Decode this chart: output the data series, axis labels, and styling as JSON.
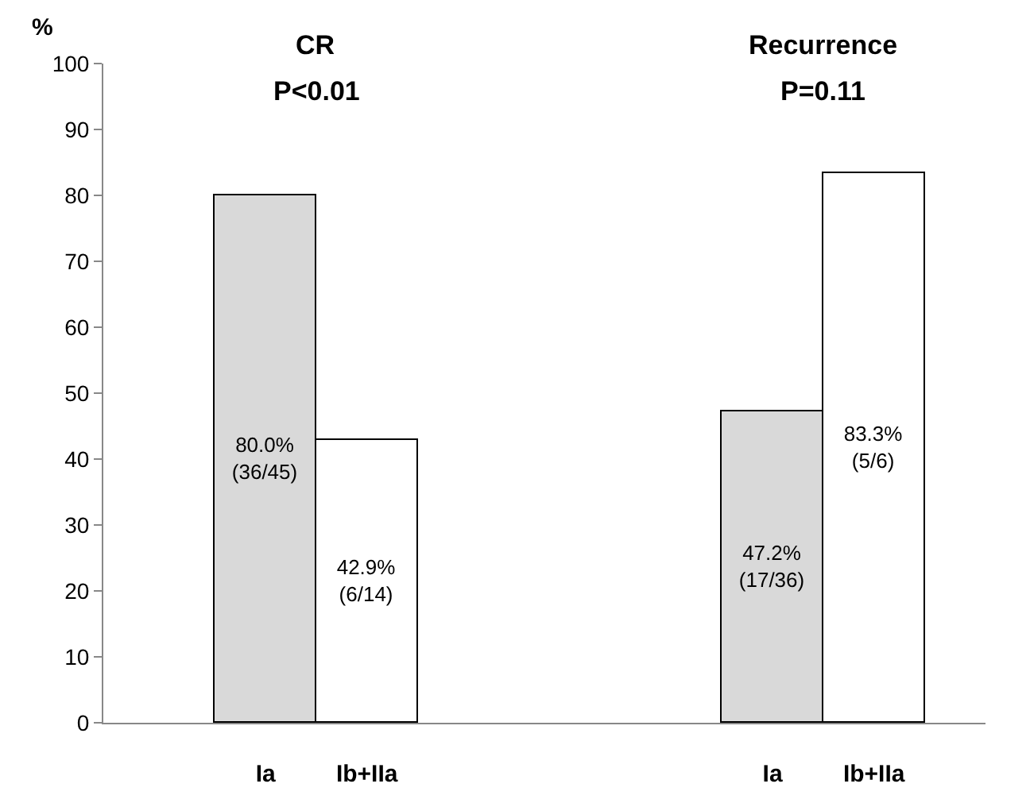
{
  "chart_data": {
    "type": "bar",
    "ylabel": "%",
    "categories": [
      "Ia",
      "Ib+IIa",
      null,
      null,
      null,
      "Ia",
      "Ib+IIa"
    ],
    "values": [
      80.0,
      42.9,
      null,
      null,
      null,
      47.2,
      83.3
    ],
    "colors": [
      "#d9d9d9",
      "#ffffff",
      null,
      null,
      null,
      "#d9d9d9",
      "#ffffff"
    ],
    "value_labels": [
      "80.0%\n(36/45)",
      "42.9%\n(6/14)",
      null,
      null,
      null,
      "47.2%\n(17/36)",
      "83.3%\n(5/6)"
    ],
    "annotations": [
      "CR",
      "P<0.01",
      "Recurrence",
      "P=0.11"
    ],
    "ylim": [
      0,
      100
    ],
    "yticks": [
      0,
      10,
      20,
      30,
      40,
      50,
      60,
      70,
      80,
      90,
      100
    ],
    "grid": false,
    "legend": false
  }
}
